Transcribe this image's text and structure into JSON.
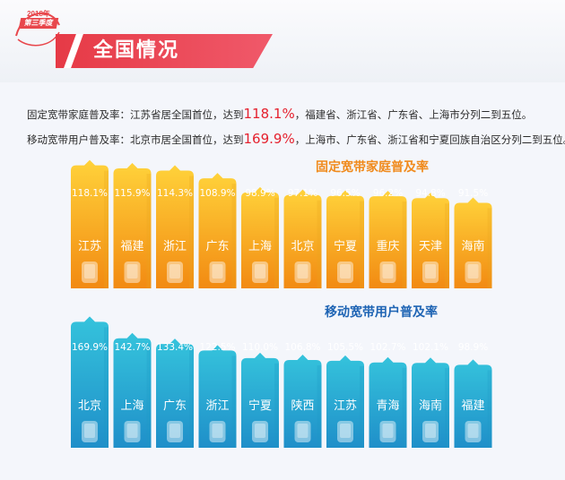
{
  "header": {
    "badge_year": "2018年",
    "badge_quarter": "第三季度",
    "title": "全国情况"
  },
  "summary": {
    "line1": {
      "lead": "固定宽带家庭普及率：江苏省居全国首位，达到",
      "value": "118.1%",
      "tail": "，福建省、浙江省、广东省、上海市分列二到五位。"
    },
    "line2": {
      "lead": "移动宽带用户普及率：北京市居全国首位，达到",
      "value": "169.9%",
      "tail": "，上海市、广东省、浙江省和宁夏回族自治区分列二到五位。"
    }
  },
  "colors": {
    "orange_top": "#ffd23a",
    "orange_bottom": "#f28a12",
    "blue_top": "#35c3dc",
    "blue_bottom": "#1f8fc9",
    "title_red": "#e63a46",
    "chart1_title": "#f08a1c",
    "chart2_title": "#1e64b4"
  },
  "chart_data": [
    {
      "type": "bar",
      "title": "固定宽带家庭普及率",
      "categories": [
        "江苏",
        "福建",
        "浙江",
        "广东",
        "上海",
        "北京",
        "宁夏",
        "重庆",
        "天津",
        "海南"
      ],
      "values": [
        118.1,
        115.9,
        114.3,
        108.9,
        98.9,
        97.1,
        96.5,
        96.2,
        94.8,
        91.5
      ],
      "value_labels": [
        "118.1%",
        "115.9%",
        "114.3%",
        "108.9%",
        "98.9%",
        "97.1%",
        "96.5%",
        "96.2%",
        "94.8%",
        "91.5%"
      ],
      "unit": "%",
      "icon": "phone-icon"
    },
    {
      "type": "bar",
      "title": "移动宽带用户普及率",
      "categories": [
        "北京",
        "上海",
        "广东",
        "浙江",
        "宁夏",
        "陕西",
        "江苏",
        "青海",
        "海南",
        "福建"
      ],
      "values": [
        169.9,
        142.7,
        133.4,
        122.5,
        110.0,
        106.8,
        105.5,
        102.7,
        102.1,
        98.9
      ],
      "value_labels": [
        "169.9%",
        "142.7%",
        "133.4%",
        "122.5%",
        "110.0%",
        "106.8%",
        "105.5%",
        "102.7%",
        "102.1%",
        "98.9%"
      ],
      "unit": "%",
      "icon": "phone-icon"
    }
  ]
}
